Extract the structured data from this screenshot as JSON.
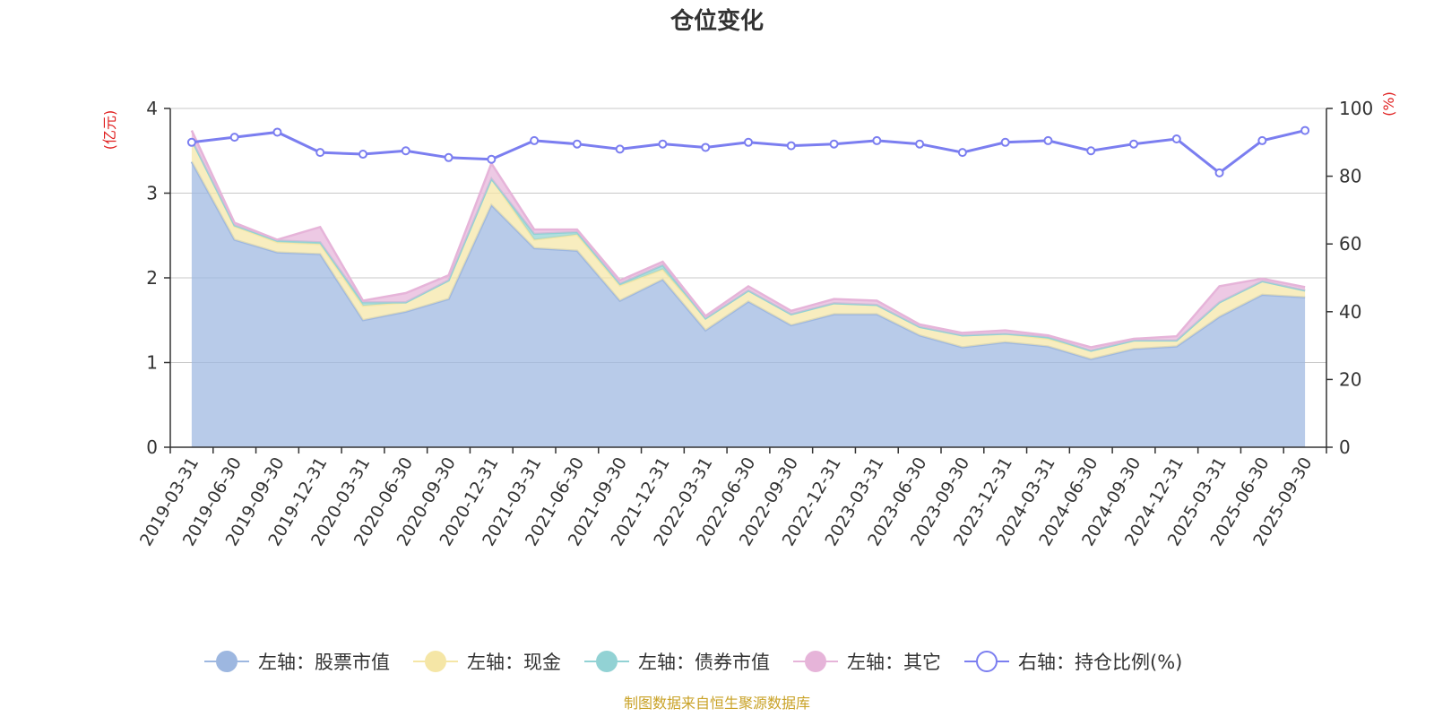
{
  "chart_data": {
    "type": "area",
    "title": "仓位变化",
    "source": "制图数据来自恒生聚源数据库",
    "left_axis": {
      "unit": "(亿元)",
      "min": 0,
      "max": 4,
      "ticks": [
        "0",
        "1",
        "2",
        "3",
        "4"
      ]
    },
    "right_axis": {
      "unit": "(%)",
      "min": 0,
      "max": 100,
      "ticks": [
        "0",
        "20",
        "40",
        "60",
        "80",
        "100"
      ]
    },
    "categories": [
      "2019-03-31",
      "2019-06-30",
      "2019-09-30",
      "2019-12-31",
      "2020-03-31",
      "2020-06-30",
      "2020-09-30",
      "2020-12-31",
      "2021-03-31",
      "2021-06-30",
      "2021-09-30",
      "2021-12-31",
      "2022-03-31",
      "2022-06-30",
      "2022-09-30",
      "2022-12-31",
      "2023-03-31",
      "2023-06-30",
      "2023-09-30",
      "2023-12-31",
      "2024-03-31",
      "2024-06-30",
      "2024-09-30",
      "2024-12-31",
      "2025-03-31",
      "2025-06-30",
      "2025-09-30"
    ],
    "series": [
      {
        "name": "左轴：股票市值",
        "axis": "left",
        "color": "#9db7e0",
        "values": [
          3.37,
          2.45,
          2.3,
          2.28,
          1.5,
          1.6,
          1.75,
          2.86,
          2.35,
          2.32,
          1.73,
          1.98,
          1.38,
          1.72,
          1.44,
          1.57,
          1.57,
          1.32,
          1.18,
          1.24,
          1.19,
          1.04,
          1.16,
          1.19,
          1.54,
          1.8,
          1.77
        ]
      },
      {
        "name": "左轴：现金",
        "axis": "left",
        "color": "#f5e6a6",
        "values": [
          0.26,
          0.16,
          0.12,
          0.12,
          0.17,
          0.11,
          0.22,
          0.31,
          0.1,
          0.19,
          0.18,
          0.12,
          0.14,
          0.13,
          0.13,
          0.13,
          0.11,
          0.1,
          0.14,
          0.1,
          0.09,
          0.1,
          0.1,
          0.07,
          0.17,
          0.16,
          0.08
        ]
      },
      {
        "name": "左轴：债券市值",
        "axis": "left",
        "color": "#92d2d4",
        "values": [
          0,
          0.01,
          0.02,
          0.02,
          0.04,
          0,
          0,
          0,
          0.07,
          0.03,
          0.02,
          0.05,
          0,
          0,
          0,
          0,
          0,
          0,
          0,
          0,
          0.02,
          0,
          0,
          0,
          0,
          0,
          0
        ]
      },
      {
        "name": "左轴：其它",
        "axis": "left",
        "color": "#e6b4d9",
        "values": [
          0.11,
          0.03,
          0.01,
          0.18,
          0.02,
          0.11,
          0.06,
          0.18,
          0.05,
          0.03,
          0.04,
          0.04,
          0.03,
          0.05,
          0.04,
          0.05,
          0.05,
          0.03,
          0.03,
          0.04,
          0.02,
          0.04,
          0.02,
          0.05,
          0.19,
          0.03,
          0.04
        ]
      },
      {
        "name": "右轴：持仓比例(%)",
        "axis": "right",
        "color": "#7b7ef0",
        "values": [
          90,
          91.5,
          93,
          87,
          86.5,
          87.5,
          85.5,
          85,
          90.5,
          89.5,
          88,
          89.5,
          88.5,
          90,
          89,
          89.5,
          90.5,
          89.5,
          87,
          90,
          90.5,
          87.5,
          89.5,
          91,
          81,
          90.5,
          93.5
        ]
      }
    ]
  }
}
